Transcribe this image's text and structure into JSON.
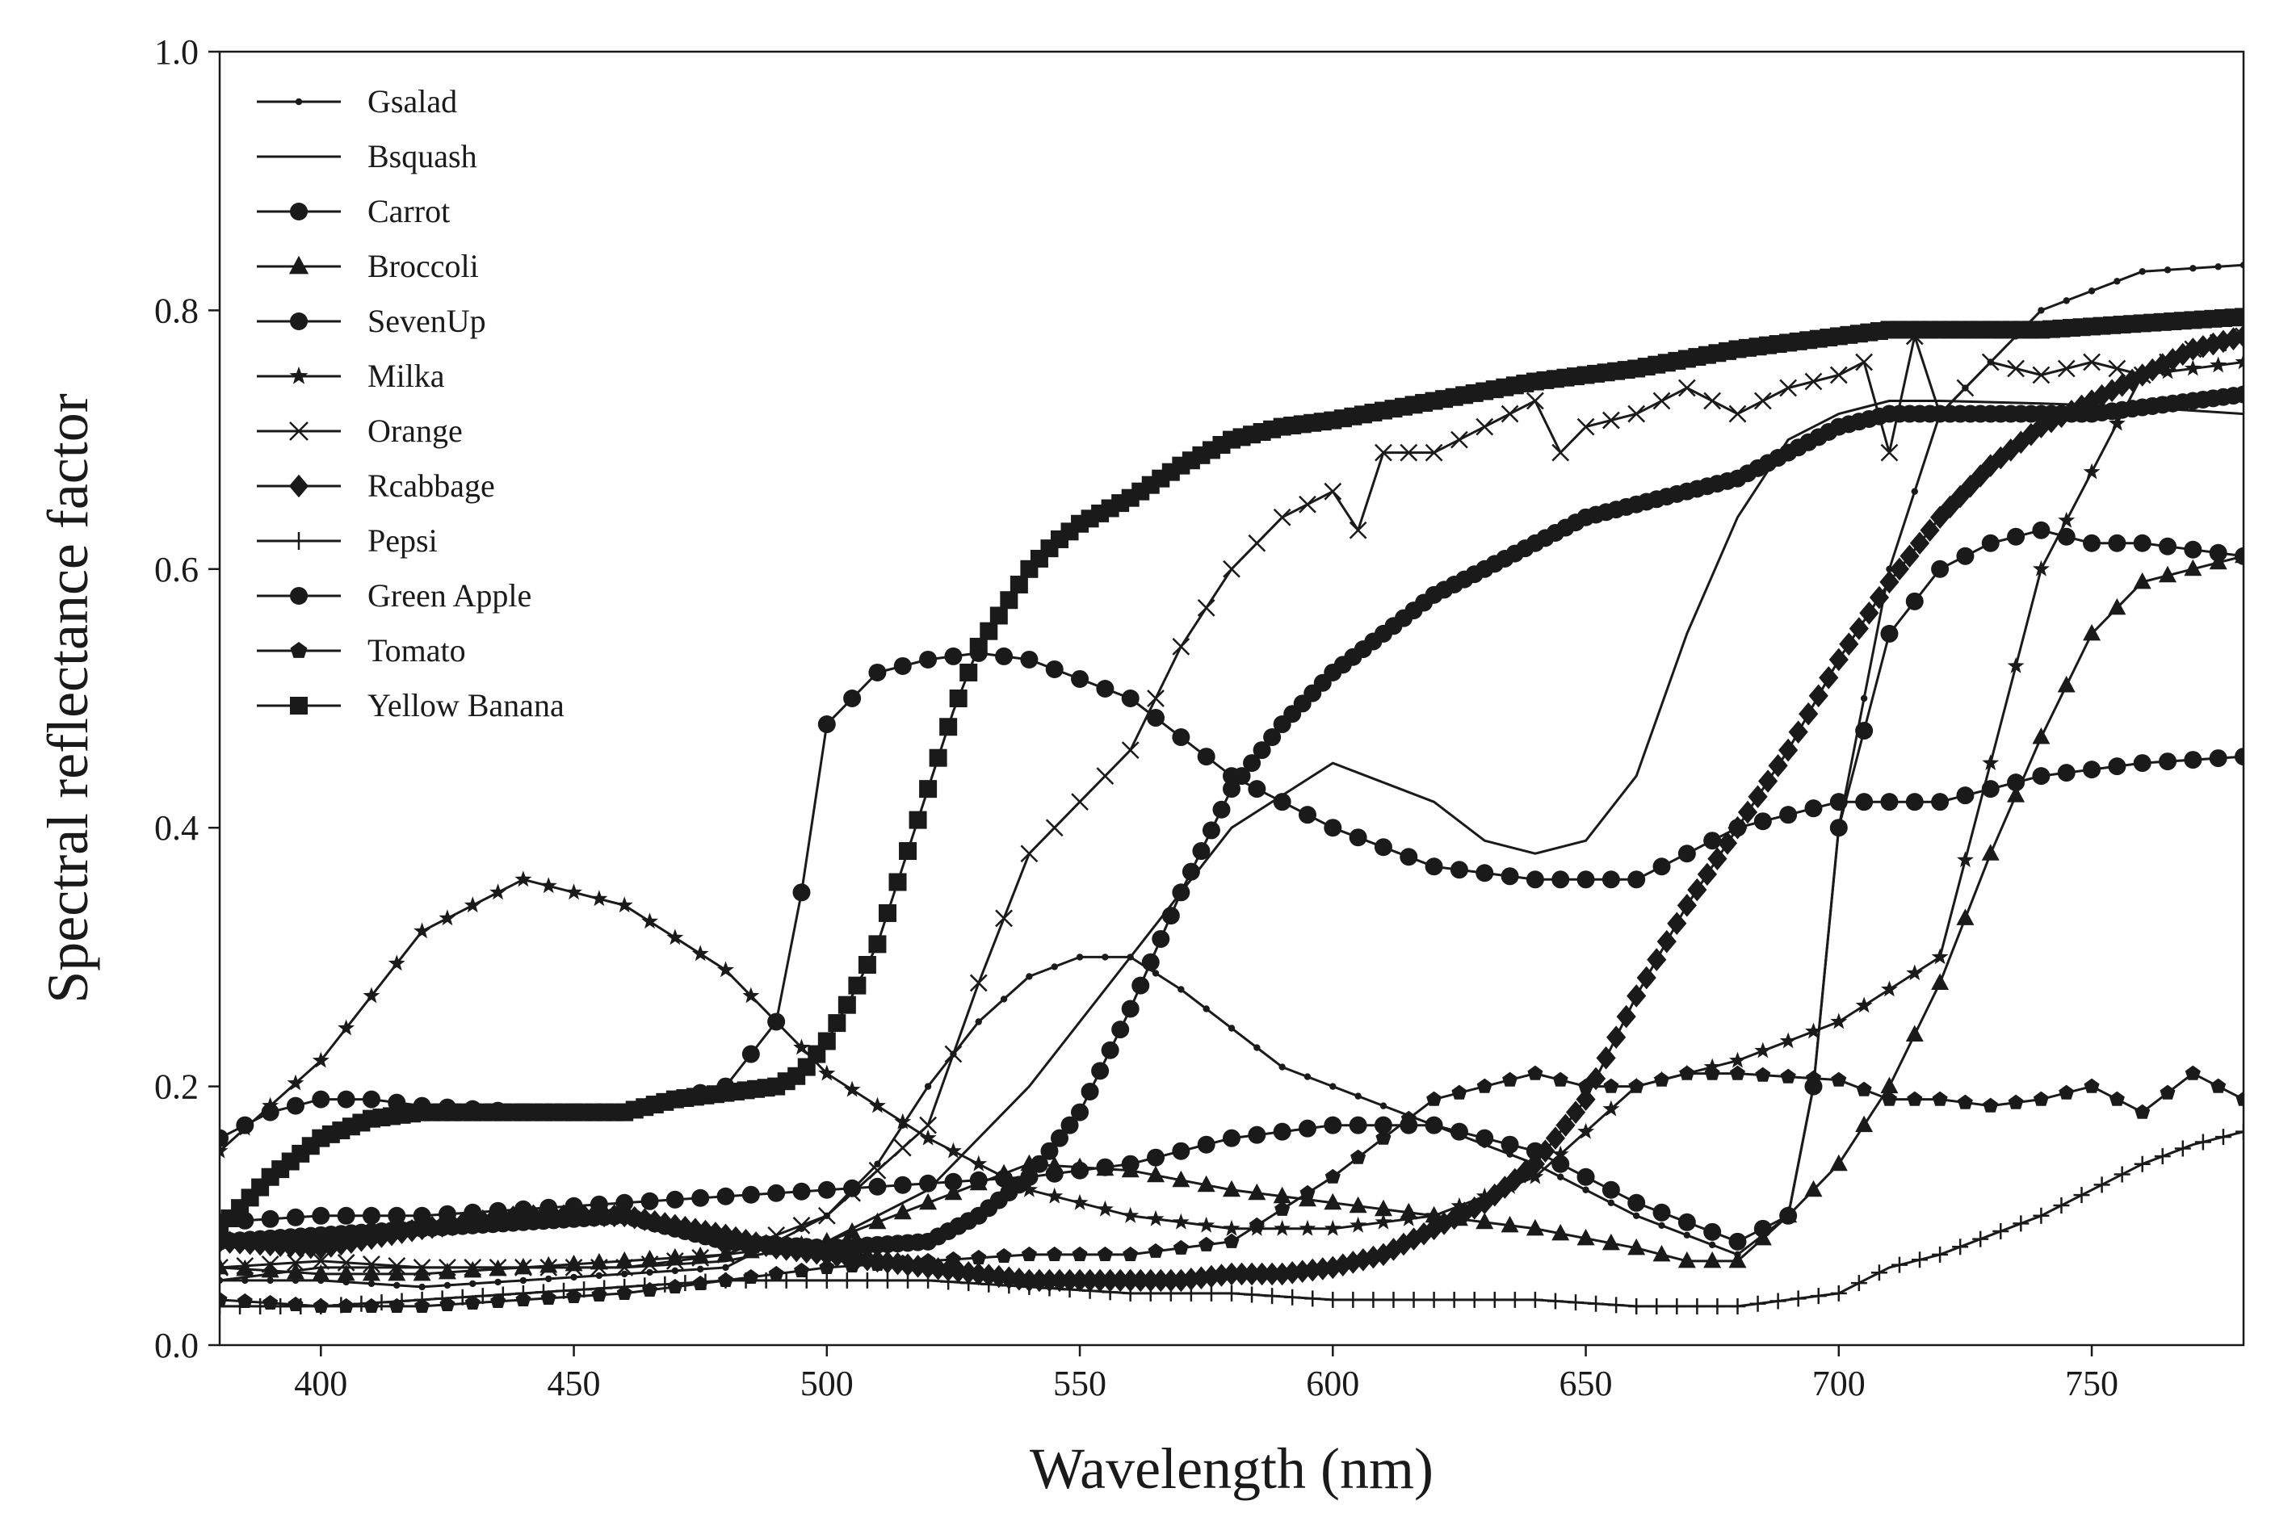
{
  "chart_data": {
    "type": "line",
    "title": "",
    "xlabel": "Wavelength (nm)",
    "ylabel": "Spectral reflectance factor",
    "xlim": [
      380,
      780
    ],
    "ylim": [
      0.0,
      1.0
    ],
    "xticks": [
      400,
      450,
      500,
      550,
      600,
      650,
      700,
      750
    ],
    "xtick_labels": [
      "400",
      "450",
      "500",
      "550",
      "600",
      "650",
      "700",
      "750"
    ],
    "yticks": [
      0.0,
      0.2,
      0.4,
      0.6,
      0.8,
      1.0
    ],
    "ytick_labels": [
      "0.0",
      "0.2",
      "0.4",
      "0.6",
      "0.8",
      "1.0"
    ],
    "grid": false,
    "legend_position": "top-left",
    "series": [
      {
        "name": "Gsalad",
        "marker": "dot",
        "marker_every": 5,
        "x": [
          380,
          400,
          420,
          440,
          460,
          480,
          500,
          510,
          520,
          530,
          540,
          550,
          560,
          570,
          580,
          590,
          600,
          610,
          620,
          640,
          660,
          680,
          690,
          695,
          700,
          710,
          720,
          740,
          760,
          780
        ],
        "values": [
          0.05,
          0.05,
          0.045,
          0.05,
          0.055,
          0.06,
          0.1,
          0.14,
          0.2,
          0.25,
          0.285,
          0.3,
          0.3,
          0.275,
          0.245,
          0.215,
          0.2,
          0.185,
          0.17,
          0.14,
          0.1,
          0.07,
          0.1,
          0.2,
          0.4,
          0.6,
          0.72,
          0.8,
          0.83,
          0.835
        ]
      },
      {
        "name": "Bsquash",
        "marker": "none",
        "marker_every": 1,
        "x": [
          380,
          400,
          420,
          440,
          460,
          480,
          500,
          520,
          540,
          560,
          580,
          600,
          620,
          630,
          640,
          650,
          660,
          670,
          680,
          690,
          700,
          710,
          720,
          740,
          760,
          780
        ],
        "values": [
          0.05,
          0.06,
          0.06,
          0.06,
          0.06,
          0.065,
          0.08,
          0.12,
          0.2,
          0.3,
          0.4,
          0.45,
          0.42,
          0.39,
          0.38,
          0.39,
          0.44,
          0.55,
          0.64,
          0.7,
          0.72,
          0.73,
          0.73,
          0.728,
          0.725,
          0.72
        ]
      },
      {
        "name": "Carrot",
        "marker": "circle",
        "marker_every": 5,
        "x": [
          380,
          390,
          400,
          410,
          420,
          440,
          460,
          480,
          490,
          495,
          500,
          510,
          520,
          530,
          540,
          560,
          580,
          600,
          620,
          640,
          660,
          680,
          700,
          720,
          740,
          760,
          780
        ],
        "values": [
          0.16,
          0.18,
          0.19,
          0.19,
          0.185,
          0.18,
          0.18,
          0.2,
          0.25,
          0.35,
          0.48,
          0.52,
          0.53,
          0.535,
          0.53,
          0.5,
          0.44,
          0.4,
          0.37,
          0.36,
          0.36,
          0.4,
          0.42,
          0.42,
          0.44,
          0.45,
          0.455
        ]
      },
      {
        "name": "Broccoli",
        "marker": "triangle",
        "marker_every": 5,
        "x": [
          380,
          400,
          420,
          440,
          460,
          480,
          500,
          520,
          540,
          560,
          580,
          600,
          620,
          640,
          660,
          670,
          680,
          690,
          700,
          710,
          720,
          730,
          740,
          750,
          760,
          770,
          780
        ],
        "values": [
          0.06,
          0.055,
          0.055,
          0.06,
          0.065,
          0.07,
          0.08,
          0.11,
          0.14,
          0.135,
          0.12,
          0.11,
          0.1,
          0.09,
          0.075,
          0.065,
          0.065,
          0.1,
          0.14,
          0.2,
          0.28,
          0.38,
          0.47,
          0.55,
          0.59,
          0.6,
          0.61
        ]
      },
      {
        "name": "SevenUp",
        "marker": "circle",
        "marker_every": 5,
        "x": [
          380,
          400,
          420,
          440,
          460,
          480,
          500,
          520,
          540,
          560,
          580,
          600,
          620,
          640,
          660,
          680,
          690,
          695,
          700,
          710,
          720,
          730,
          740,
          750,
          760,
          780
        ],
        "values": [
          0.095,
          0.1,
          0.1,
          0.105,
          0.11,
          0.115,
          0.12,
          0.125,
          0.13,
          0.14,
          0.16,
          0.17,
          0.17,
          0.15,
          0.11,
          0.08,
          0.1,
          0.2,
          0.4,
          0.55,
          0.6,
          0.62,
          0.63,
          0.62,
          0.62,
          0.61
        ]
      },
      {
        "name": "Milka",
        "marker": "star",
        "marker_every": 5,
        "x": [
          380,
          400,
          420,
          440,
          460,
          480,
          500,
          520,
          540,
          560,
          580,
          600,
          620,
          640,
          660,
          680,
          700,
          720,
          740,
          760,
          780
        ],
        "values": [
          0.15,
          0.22,
          0.32,
          0.36,
          0.34,
          0.29,
          0.21,
          0.16,
          0.12,
          0.1,
          0.09,
          0.09,
          0.1,
          0.13,
          0.2,
          0.22,
          0.25,
          0.3,
          0.6,
          0.75,
          0.76
        ]
      },
      {
        "name": "Orange",
        "marker": "cross",
        "marker_every": 5,
        "x": [
          380,
          400,
          420,
          440,
          460,
          480,
          500,
          520,
          530,
          540,
          550,
          560,
          570,
          580,
          590,
          600,
          605,
          610,
          620,
          630,
          640,
          645,
          650,
          660,
          670,
          680,
          690,
          700,
          705,
          710,
          715,
          720,
          730,
          740,
          750,
          760,
          770,
          780
        ],
        "values": [
          0.06,
          0.065,
          0.06,
          0.06,
          0.06,
          0.07,
          0.1,
          0.17,
          0.28,
          0.38,
          0.42,
          0.46,
          0.54,
          0.6,
          0.64,
          0.66,
          0.63,
          0.69,
          0.69,
          0.71,
          0.73,
          0.69,
          0.71,
          0.72,
          0.74,
          0.72,
          0.74,
          0.75,
          0.76,
          0.69,
          0.78,
          0.72,
          0.76,
          0.75,
          0.76,
          0.75,
          0.77,
          0.78
        ]
      },
      {
        "name": "Rcabbage",
        "marker": "diamond",
        "marker_every": 2,
        "x": [
          380,
          400,
          420,
          440,
          460,
          480,
          490,
          500,
          510,
          520,
          530,
          540,
          550,
          560,
          570,
          580,
          590,
          600,
          610,
          620,
          630,
          640,
          650,
          660,
          670,
          680,
          690,
          700,
          710,
          720,
          730,
          740,
          750,
          760,
          770,
          780
        ],
        "values": [
          0.08,
          0.075,
          0.09,
          0.1,
          0.1,
          0.085,
          0.075,
          0.07,
          0.065,
          0.06,
          0.055,
          0.05,
          0.05,
          0.05,
          0.05,
          0.055,
          0.055,
          0.06,
          0.07,
          0.09,
          0.11,
          0.14,
          0.19,
          0.27,
          0.34,
          0.4,
          0.46,
          0.53,
          0.59,
          0.64,
          0.68,
          0.71,
          0.73,
          0.75,
          0.77,
          0.78
        ]
      },
      {
        "name": "Pepsi",
        "marker": "plus",
        "marker_every": 4,
        "x": [
          380,
          400,
          420,
          440,
          460,
          480,
          500,
          520,
          540,
          560,
          580,
          600,
          620,
          640,
          660,
          680,
          700,
          710,
          720,
          730,
          740,
          750,
          760,
          770,
          780
        ],
        "values": [
          0.03,
          0.03,
          0.035,
          0.04,
          0.045,
          0.05,
          0.05,
          0.05,
          0.045,
          0.04,
          0.04,
          0.035,
          0.035,
          0.035,
          0.03,
          0.03,
          0.04,
          0.06,
          0.07,
          0.085,
          0.1,
          0.12,
          0.14,
          0.155,
          0.165
        ]
      },
      {
        "name": "Green Apple",
        "marker": "circle",
        "marker_every": 2,
        "x": [
          380,
          400,
          420,
          440,
          460,
          480,
          500,
          520,
          530,
          540,
          550,
          560,
          570,
          580,
          590,
          600,
          610,
          620,
          630,
          640,
          650,
          660,
          670,
          680,
          690,
          700,
          710,
          720,
          730,
          740,
          750,
          760,
          770,
          780
        ],
        "values": [
          0.08,
          0.085,
          0.09,
          0.095,
          0.1,
          0.08,
          0.075,
          0.08,
          0.1,
          0.13,
          0.18,
          0.26,
          0.35,
          0.43,
          0.48,
          0.52,
          0.55,
          0.58,
          0.6,
          0.62,
          0.64,
          0.65,
          0.66,
          0.67,
          0.69,
          0.71,
          0.72,
          0.72,
          0.72,
          0.72,
          0.72,
          0.725,
          0.73,
          0.735
        ]
      },
      {
        "name": "Tomato",
        "marker": "pentagon",
        "marker_every": 5,
        "x": [
          380,
          400,
          420,
          440,
          460,
          480,
          500,
          520,
          540,
          560,
          580,
          600,
          620,
          640,
          650,
          660,
          670,
          675,
          680,
          700,
          710,
          720,
          730,
          740,
          750,
          760,
          770,
          780
        ],
        "values": [
          0.035,
          0.03,
          0.03,
          0.035,
          0.04,
          0.05,
          0.06,
          0.065,
          0.07,
          0.07,
          0.08,
          0.13,
          0.19,
          0.21,
          0.2,
          0.2,
          0.21,
          0.21,
          0.21,
          0.205,
          0.19,
          0.19,
          0.185,
          0.19,
          0.2,
          0.18,
          0.21,
          0.19
        ]
      },
      {
        "name": "Yellow Banana",
        "marker": "square",
        "marker_every": 2,
        "x": [
          380,
          390,
          400,
          410,
          420,
          430,
          440,
          450,
          460,
          470,
          480,
          490,
          495,
          500,
          505,
          510,
          515,
          520,
          525,
          530,
          535,
          540,
          545,
          550,
          560,
          570,
          580,
          590,
          600,
          620,
          640,
          660,
          680,
          700,
          710,
          720,
          740,
          760,
          780
        ],
        "values": [
          0.09,
          0.13,
          0.16,
          0.175,
          0.18,
          0.18,
          0.18,
          0.18,
          0.18,
          0.19,
          0.195,
          0.2,
          0.21,
          0.235,
          0.27,
          0.31,
          0.37,
          0.43,
          0.49,
          0.54,
          0.57,
          0.6,
          0.62,
          0.635,
          0.655,
          0.68,
          0.7,
          0.71,
          0.715,
          0.73,
          0.745,
          0.755,
          0.77,
          0.78,
          0.785,
          0.785,
          0.785,
          0.79,
          0.795
        ]
      }
    ]
  }
}
